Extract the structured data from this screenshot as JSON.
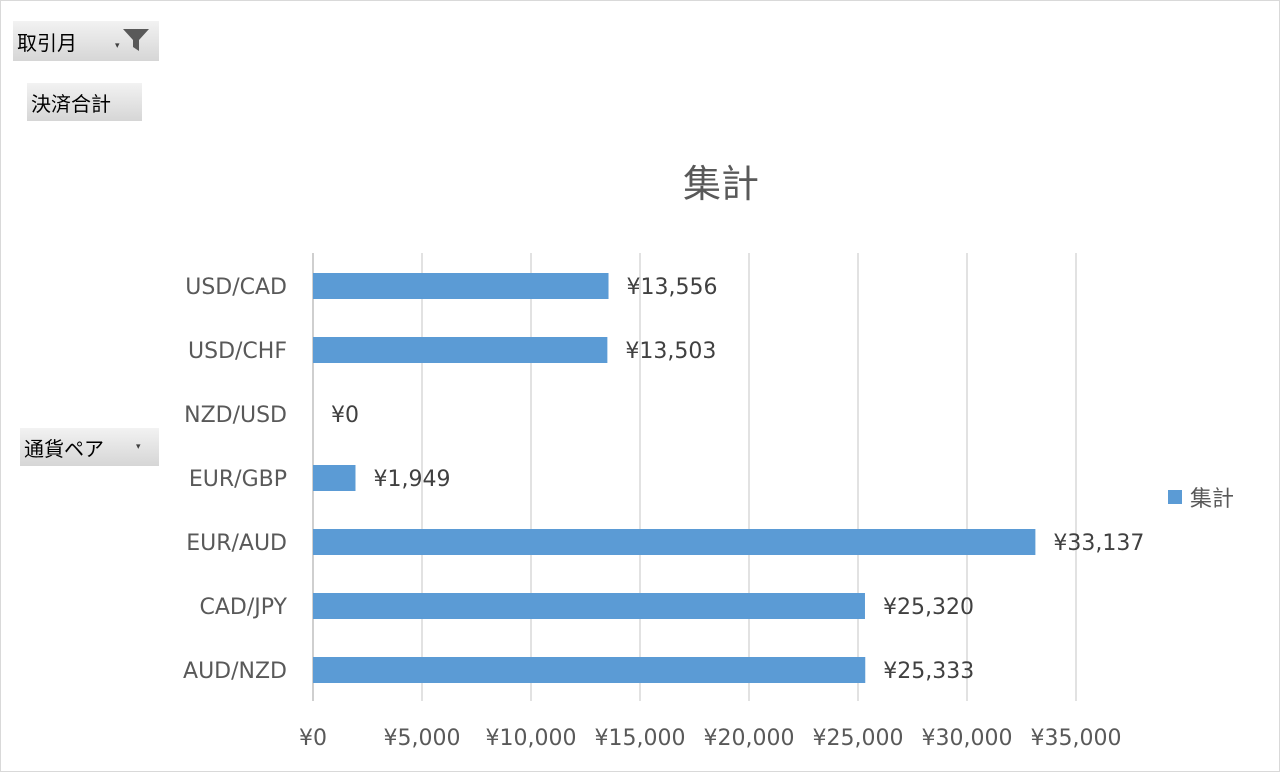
{
  "filters": {
    "month_label": "取引月",
    "sum_label": "決済合計",
    "pair_label": "通貨ペア"
  },
  "chart_data": {
    "type": "bar",
    "orientation": "horizontal",
    "title": "集計",
    "categories": [
      "USD/CAD",
      "USD/CHF",
      "NZD/USD",
      "EUR/GBP",
      "EUR/AUD",
      "CAD/JPY",
      "AUD/NZD"
    ],
    "series": [
      {
        "name": "集計",
        "values": [
          13556,
          13503,
          0,
          1949,
          33137,
          25320,
          25333
        ],
        "data_labels": [
          "¥13,556",
          "¥13,503",
          "¥0",
          "¥1,949",
          "¥33,137",
          "¥25,320",
          "¥25,333"
        ]
      }
    ],
    "xlim": [
      0,
      35000
    ],
    "x_ticks": [
      0,
      5000,
      10000,
      15000,
      20000,
      25000,
      30000,
      35000
    ],
    "x_tick_labels": [
      "¥0",
      "¥5,000",
      "¥10,000",
      "¥15,000",
      "¥20,000",
      "¥25,000",
      "¥30,000",
      "¥35,000"
    ],
    "gridlines": true,
    "legend_position": "right",
    "colors": {
      "bar": "#5b9bd5",
      "grid": "#d9d9d9",
      "text": "#595959"
    }
  }
}
